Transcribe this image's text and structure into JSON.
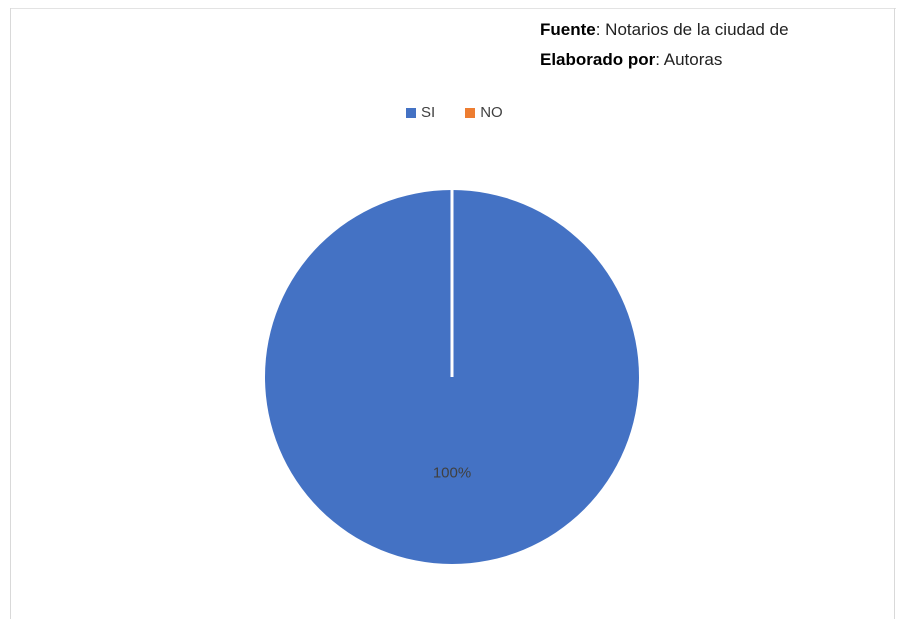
{
  "source": {
    "fuente_label": "Fuente",
    "fuente_value": ": Notarios de la ciudad de",
    "elaborado_label": "Elaborado por",
    "elaborado_value": ": Autoras"
  },
  "legend": [
    {
      "label": "SI",
      "color": "#4472C4"
    },
    {
      "label": "NO",
      "color": "#ED7D31"
    }
  ],
  "chart_data": {
    "type": "pie",
    "categories": [
      "SI",
      "NO"
    ],
    "values": [
      100,
      0
    ],
    "data_labels": [
      "100%",
      ""
    ],
    "colors": [
      "#4472C4",
      "#ED7D31"
    ],
    "legend_position": "top",
    "title": ""
  }
}
